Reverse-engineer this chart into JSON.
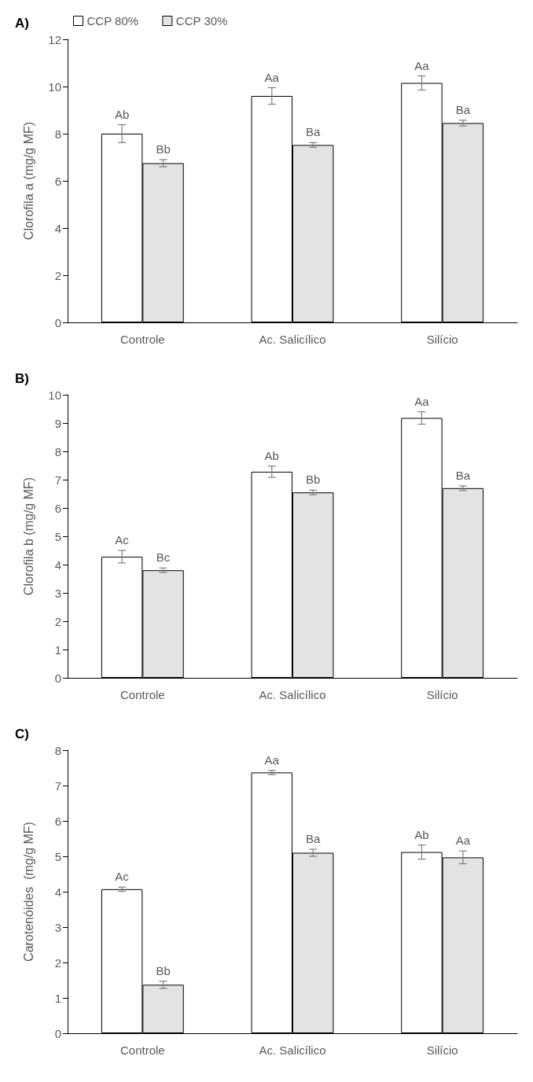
{
  "chart_data": [
    {
      "type": "bar",
      "title": "A)",
      "ylabel": "Clorofila a (mg/g MF)",
      "categories": [
        "Controle",
        "Ac. Salicílico",
        "Silício"
      ],
      "ylim": [
        0,
        12
      ],
      "yticks": [
        0,
        2,
        4,
        6,
        8,
        10,
        12
      ],
      "grid": false,
      "legend": "top left",
      "series": [
        {
          "name": "CCP 80%",
          "color": "#ffffff",
          "values": [
            8.0,
            9.6,
            10.15
          ],
          "errors": [
            0.38,
            0.35,
            0.3
          ],
          "value_labels": [
            "Ab",
            "Aa",
            "Aa"
          ]
        },
        {
          "name": "CCP 30%",
          "color": "#e3e3e3",
          "values": [
            6.75,
            7.52,
            8.45
          ],
          "errors": [
            0.15,
            0.1,
            0.12
          ],
          "value_labels": [
            "Bb",
            "Ba",
            "Ba"
          ]
        }
      ]
    },
    {
      "type": "bar",
      "title": "B)",
      "ylabel": "Clorofila b (mg/g MF)",
      "categories": [
        "Controle",
        "Ac. Salicílico",
        "Silício"
      ],
      "ylim": [
        0,
        10
      ],
      "yticks": [
        0,
        1,
        2,
        3,
        4,
        5,
        6,
        7,
        8,
        9,
        10
      ],
      "grid": false,
      "legend": false,
      "series": [
        {
          "color": "#ffffff",
          "values": [
            4.28,
            7.28,
            9.18
          ],
          "errors": [
            0.22,
            0.2,
            0.22
          ],
          "value_labels": [
            "Ac",
            "Ab",
            "Aa"
          ]
        },
        {
          "color": "#e3e3e3",
          "values": [
            3.8,
            6.55,
            6.7
          ],
          "errors": [
            0.08,
            0.08,
            0.08
          ],
          "value_labels": [
            "Bc",
            "Bb",
            "Ba"
          ]
        }
      ]
    },
    {
      "type": "bar",
      "title": "C)",
      "ylabel": "Carotenóides  (mg/g MF)",
      "categories": [
        "Controle",
        "Ac. Salicílico",
        "Silício"
      ],
      "ylim": [
        0,
        8
      ],
      "yticks": [
        0,
        1,
        2,
        3,
        4,
        5,
        6,
        7,
        8
      ],
      "grid": false,
      "legend": false,
      "series": [
        {
          "color": "#ffffff",
          "values": [
            4.07,
            7.37,
            5.12
          ],
          "errors": [
            0.06,
            0.06,
            0.2
          ],
          "value_labels": [
            "Ac",
            "Aa",
            "Ab"
          ]
        },
        {
          "color": "#e3e3e3",
          "values": [
            1.37,
            5.1,
            4.97
          ],
          "errors": [
            0.1,
            0.1,
            0.18
          ],
          "value_labels": [
            "Bb",
            "Ba",
            "Aa"
          ]
        }
      ]
    }
  ]
}
